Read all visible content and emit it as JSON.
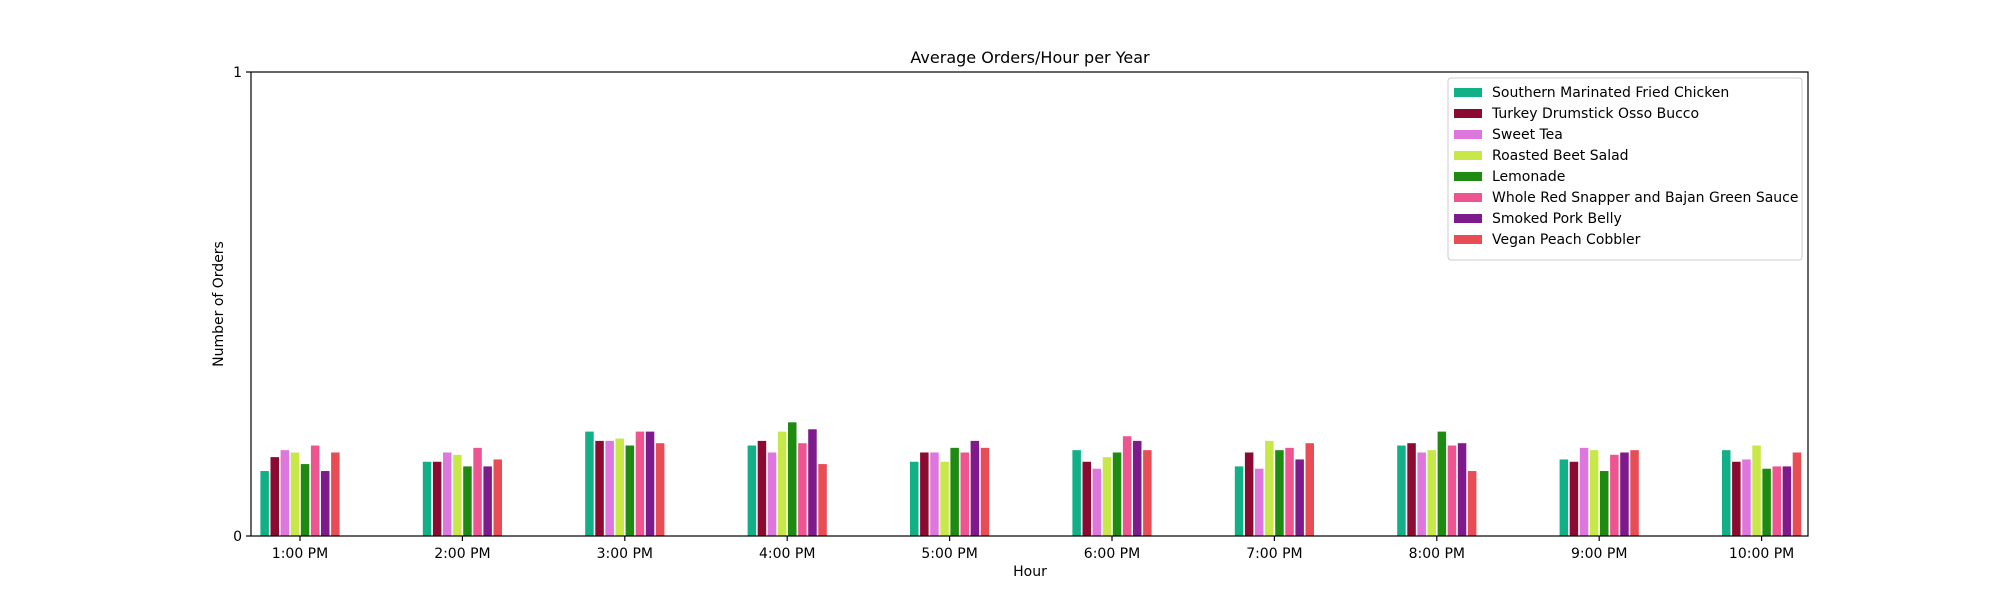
{
  "chart_data": {
    "type": "bar",
    "title": "Average Orders/Hour per Year",
    "xlabel": "Hour",
    "ylabel": "Number of Orders",
    "ylim": [
      0,
      1
    ],
    "yticks": [
      "0",
      "1"
    ],
    "categories": [
      "1:00 PM",
      "2:00 PM",
      "3:00 PM",
      "4:00 PM",
      "5:00 PM",
      "6:00 PM",
      "7:00 PM",
      "8:00 PM",
      "9:00 PM",
      "10:00 PM"
    ],
    "legend_position": "top-right",
    "series": [
      {
        "name": "Southern Marinated Fried Chicken",
        "color": "#12b087",
        "values": [
          0.14,
          0.16,
          0.225,
          0.195,
          0.16,
          0.185,
          0.15,
          0.195,
          0.165,
          0.185
        ]
      },
      {
        "name": "Turkey Drumstick Osso Bucco",
        "color": "#8b0a32",
        "values": [
          0.17,
          0.16,
          0.205,
          0.205,
          0.18,
          0.16,
          0.18,
          0.2,
          0.16,
          0.16
        ]
      },
      {
        "name": "Sweet Tea",
        "color": "#dd77dd",
        "values": [
          0.185,
          0.18,
          0.205,
          0.18,
          0.18,
          0.145,
          0.145,
          0.18,
          0.19,
          0.165
        ]
      },
      {
        "name": "Roasted Beet Salad",
        "color": "#c8e84a",
        "values": [
          0.18,
          0.175,
          0.21,
          0.225,
          0.16,
          0.17,
          0.205,
          0.185,
          0.185,
          0.195
        ]
      },
      {
        "name": "Lemonade",
        "color": "#1f8a12",
        "values": [
          0.155,
          0.15,
          0.195,
          0.245,
          0.19,
          0.18,
          0.185,
          0.225,
          0.14,
          0.145
        ]
      },
      {
        "name": "Whole Red Snapper and Bajan Green Sauce",
        "color": "#ee5590",
        "values": [
          0.195,
          0.19,
          0.225,
          0.2,
          0.18,
          0.215,
          0.19,
          0.195,
          0.175,
          0.15
        ]
      },
      {
        "name": "Smoked Pork Belly",
        "color": "#7e1a8c",
        "values": [
          0.14,
          0.15,
          0.225,
          0.23,
          0.205,
          0.205,
          0.165,
          0.2,
          0.18,
          0.15
        ]
      },
      {
        "name": "Vegan Peach Cobbler",
        "color": "#e84c55",
        "values": [
          0.18,
          0.165,
          0.2,
          0.155,
          0.19,
          0.185,
          0.2,
          0.14,
          0.185,
          0.18
        ]
      }
    ]
  }
}
